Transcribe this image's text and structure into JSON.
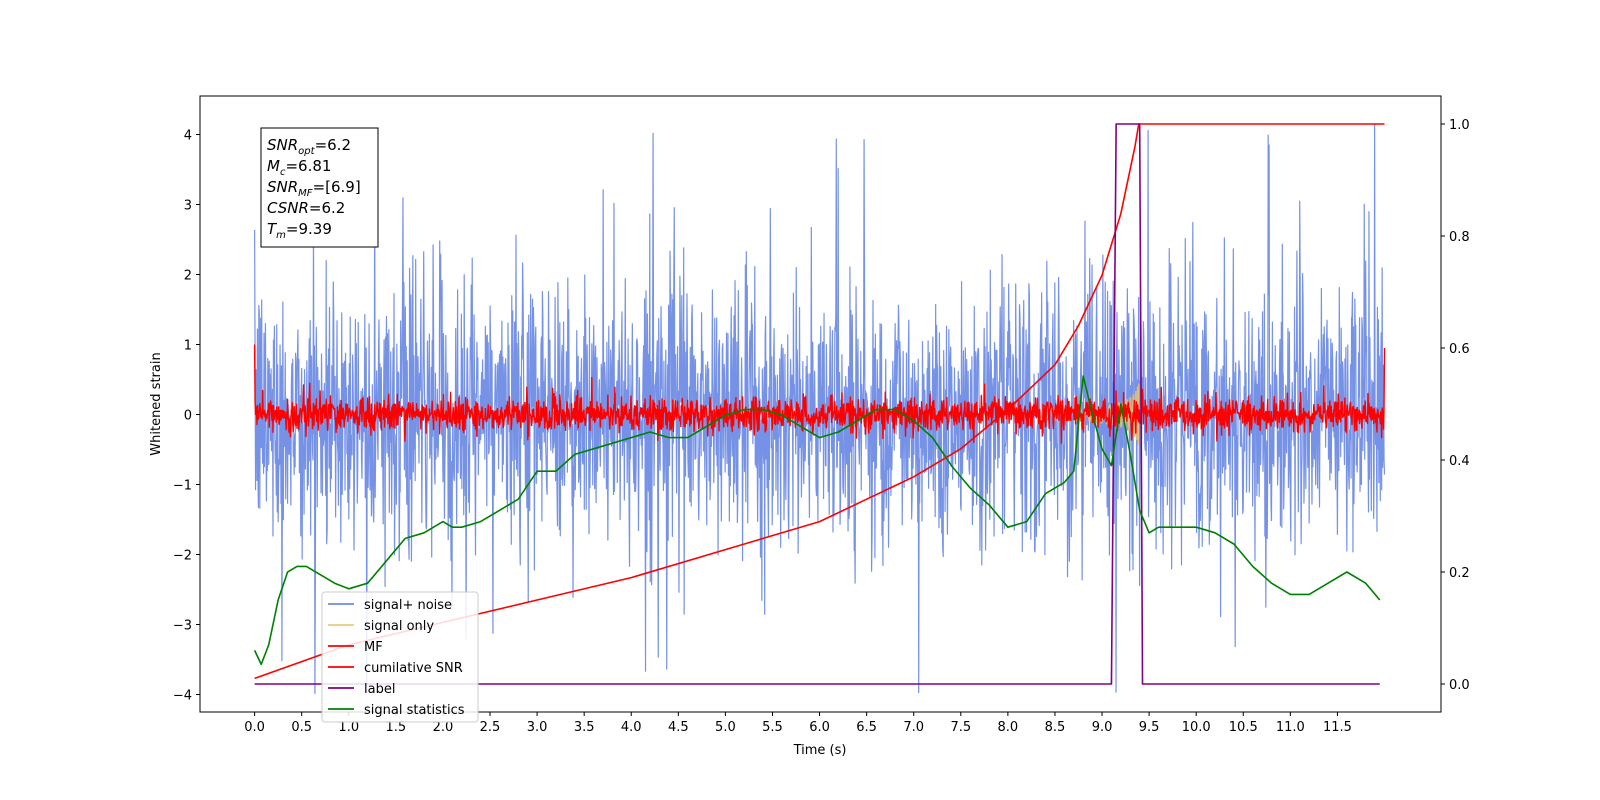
{
  "chart_data": {
    "type": "line",
    "xlabel": "Time (s)",
    "ylabel": "Whitened strain",
    "xlim": [
      -0.58,
      12.6
    ],
    "ylim": [
      -4.25,
      4.55
    ],
    "y2lim": [
      -0.05,
      1.05
    ],
    "grid": false,
    "legend_position": "lower-left",
    "x_ticks": [
      "0.0",
      "0.5",
      "1.0",
      "1.5",
      "2.0",
      "2.5",
      "3.0",
      "3.5",
      "4.0",
      "4.5",
      "5.0",
      "5.5",
      "6.0",
      "6.5",
      "7.0",
      "7.5",
      "8.0",
      "8.5",
      "9.0",
      "9.5",
      "10.0",
      "10.5",
      "11.0",
      "11.5"
    ],
    "y_ticks": [
      "−4",
      "−3",
      "−2",
      "−1",
      "0",
      "1",
      "2",
      "3",
      "4"
    ],
    "y2_ticks": [
      "0.0",
      "0.2",
      "0.4",
      "0.6",
      "0.8",
      "1.0"
    ],
    "annotation": {
      "lines": [
        {
          "base": "SNR",
          "sub": "opt",
          "rest": "=6.2"
        },
        {
          "base": "M",
          "sub": "c",
          "rest": "=6.81"
        },
        {
          "base": "SNR",
          "sub": "MF",
          "rest": "=[6.9]"
        },
        {
          "base": "CSNR",
          "sub": "",
          "rest": "=6.2"
        },
        {
          "base": "T",
          "sub": "m",
          "rest": "=9.39"
        }
      ]
    },
    "noise_params": {
      "x_start": 0.0,
      "x_end": 12.0,
      "std": 0.95,
      "spike_max": 4.15
    },
    "series": [
      {
        "name": "signal+ noise",
        "color": "#6f8ce6",
        "axis": "left",
        "style": "noisy"
      },
      {
        "name": "signal only",
        "color": "#e8c06a",
        "axis": "left",
        "style": "chirp",
        "x_peak": 9.39
      },
      {
        "name": "MF",
        "color": "#ff0000",
        "axis": "left",
        "style": "noisy-small"
      },
      {
        "name": "cumilative SNR",
        "color": "#ff0000",
        "axis": "right",
        "x": [
          0.0,
          0.5,
          1.0,
          2.0,
          3.0,
          4.0,
          5.0,
          6.0,
          6.5,
          7.0,
          7.5,
          8.0,
          8.5,
          8.75,
          9.0,
          9.2,
          9.35,
          9.39,
          12.0
        ],
        "values": [
          0.01,
          0.04,
          0.07,
          0.11,
          0.15,
          0.19,
          0.24,
          0.29,
          0.33,
          0.37,
          0.42,
          0.49,
          0.57,
          0.64,
          0.73,
          0.84,
          0.96,
          1.0,
          1.0
        ]
      },
      {
        "name": "label",
        "color": "#800080",
        "axis": "right",
        "x": [
          0.0,
          9.1,
          9.15,
          9.4,
          9.43,
          11.95
        ],
        "values": [
          0.0,
          0.0,
          1.0,
          1.0,
          0.0,
          0.0
        ]
      },
      {
        "name": "signal statistics",
        "color": "#008000",
        "axis": "right",
        "x": [
          0.0,
          0.07,
          0.15,
          0.25,
          0.35,
          0.45,
          0.55,
          0.65,
          0.75,
          0.85,
          1.0,
          1.2,
          1.4,
          1.6,
          1.8,
          2.0,
          2.1,
          2.2,
          2.4,
          2.6,
          2.8,
          3.0,
          3.2,
          3.4,
          3.6,
          3.8,
          4.0,
          4.2,
          4.4,
          4.6,
          4.8,
          5.0,
          5.2,
          5.4,
          5.6,
          5.8,
          6.0,
          6.2,
          6.4,
          6.6,
          6.8,
          7.0,
          7.2,
          7.4,
          7.6,
          7.8,
          8.0,
          8.2,
          8.4,
          8.6,
          8.7,
          8.8,
          8.9,
          9.0,
          9.1,
          9.2,
          9.3,
          9.4,
          9.5,
          9.6,
          9.8,
          10.0,
          10.2,
          10.4,
          10.6,
          10.8,
          11.0,
          11.2,
          11.4,
          11.6,
          11.8,
          11.95
        ],
        "values": [
          0.06,
          0.035,
          0.07,
          0.15,
          0.2,
          0.21,
          0.21,
          0.2,
          0.19,
          0.18,
          0.17,
          0.18,
          0.22,
          0.26,
          0.27,
          0.29,
          0.28,
          0.28,
          0.29,
          0.31,
          0.33,
          0.38,
          0.38,
          0.41,
          0.42,
          0.43,
          0.44,
          0.45,
          0.44,
          0.44,
          0.46,
          0.48,
          0.49,
          0.49,
          0.48,
          0.46,
          0.44,
          0.45,
          0.47,
          0.49,
          0.49,
          0.47,
          0.44,
          0.39,
          0.35,
          0.32,
          0.28,
          0.29,
          0.34,
          0.36,
          0.38,
          0.55,
          0.48,
          0.42,
          0.39,
          0.5,
          0.41,
          0.31,
          0.27,
          0.28,
          0.28,
          0.28,
          0.27,
          0.25,
          0.21,
          0.18,
          0.16,
          0.16,
          0.18,
          0.2,
          0.18,
          0.15
        ]
      }
    ]
  }
}
